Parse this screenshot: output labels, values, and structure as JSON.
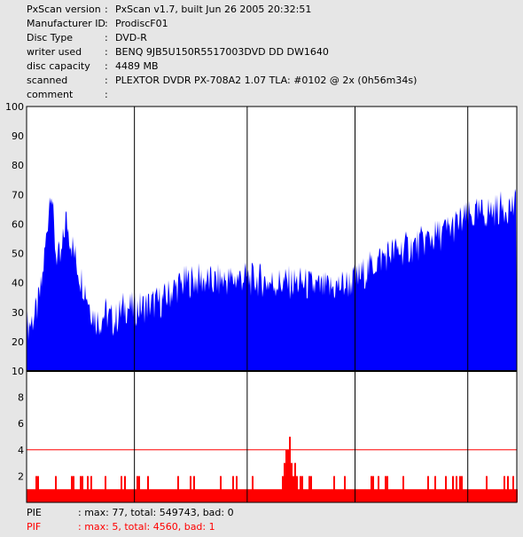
{
  "info": [
    {
      "key": "PxScan version",
      "value": "PxScan v1.7, built Jun 26 2005 20:32:51"
    },
    {
      "key": "Manufacturer ID",
      "value": "ProdiscF01"
    },
    {
      "key": "Disc Type",
      "value": "DVD-R"
    },
    {
      "key": "writer used",
      "value": "BENQ 9JB5U150R5517003DVD DD DW1640"
    },
    {
      "key": "disc capacity",
      "value": "4489 MB"
    },
    {
      "key": "scanned",
      "value": "PLEXTOR DVDR PX-708A2 1.07 TLA: #0102 @ 2x (0h56m34s)"
    },
    {
      "key": "comment",
      "value": ""
    }
  ],
  "colors": {
    "pie": "#0000ff",
    "pif": "#ff0000",
    "background": "#e6e6e6",
    "plot": "#ffffff",
    "grid": "#000000"
  },
  "chart_data": [
    {
      "type": "area",
      "series": [
        {
          "name": "PIE",
          "x_fraction": [
            0,
            0.01,
            0.02,
            0.03,
            0.04,
            0.045,
            0.05,
            0.055,
            0.06,
            0.07,
            0.08,
            0.09,
            0.1,
            0.11,
            0.12,
            0.13,
            0.14,
            0.15,
            0.16,
            0.17,
            0.18,
            0.2,
            0.22,
            0.24,
            0.26,
            0.28,
            0.3,
            0.32,
            0.34,
            0.36,
            0.38,
            0.4,
            0.42,
            0.44,
            0.46,
            0.48,
            0.5,
            0.52,
            0.54,
            0.56,
            0.58,
            0.6,
            0.62,
            0.64,
            0.66,
            0.68,
            0.7,
            0.72,
            0.74,
            0.76,
            0.78,
            0.8,
            0.82,
            0.84,
            0.86,
            0.88,
            0.9,
            0.92,
            0.94,
            0.96,
            0.98,
            1.0
          ],
          "values": [
            25,
            27,
            30,
            38,
            55,
            65,
            75,
            60,
            50,
            47,
            62,
            55,
            48,
            42,
            38,
            32,
            28,
            27,
            30,
            28,
            27,
            32,
            31,
            32,
            33,
            34,
            38,
            40,
            41,
            41,
            40,
            41,
            41,
            42,
            41,
            41,
            40,
            40,
            40,
            40,
            39,
            38,
            38,
            39,
            40,
            42,
            45,
            48,
            50,
            51,
            52,
            53,
            55,
            56,
            58,
            60,
            62,
            63,
            64,
            65,
            66,
            66
          ],
          "max": 77
        }
      ],
      "yticks": [
        10,
        20,
        30,
        40,
        50,
        60,
        70,
        80,
        90,
        100
      ],
      "ylim": [
        10,
        100
      ],
      "grid": true
    },
    {
      "type": "bar",
      "series": [
        {
          "name": "PIF",
          "x_fraction": [
            0,
            0.05,
            0.055,
            0.06,
            0.1,
            0.15,
            0.2,
            0.3,
            0.4,
            0.45,
            0.5,
            0.52,
            0.53,
            0.535,
            0.54,
            0.55,
            0.56,
            0.57,
            0.6,
            0.7,
            0.8,
            0.9,
            1.0
          ],
          "values": [
            1,
            1,
            2,
            3,
            1,
            1,
            1,
            1,
            1,
            1,
            1,
            2,
            3,
            5,
            3,
            2,
            2,
            1,
            1,
            1,
            1,
            1,
            1
          ],
          "max": 5
        }
      ],
      "yticks": [
        2,
        4,
        6,
        8,
        10
      ],
      "ylim": [
        0,
        10
      ],
      "threshold": 4,
      "grid": true
    }
  ],
  "footer": [
    {
      "key": "PIE",
      "value": ": max: 77, total: 549743, bad: 0",
      "color": "#000000"
    },
    {
      "key": "PIF",
      "value": ": max: 5, total: 4560, bad: 1",
      "color": "#ff0000"
    }
  ]
}
